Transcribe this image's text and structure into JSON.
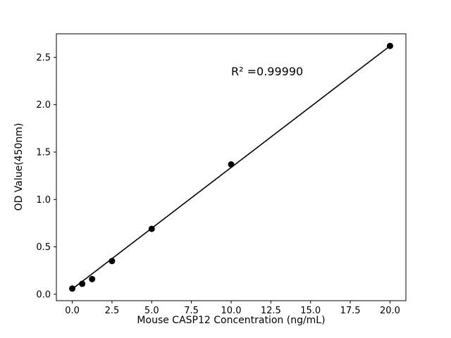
{
  "chart_data": {
    "type": "scatter",
    "title": "",
    "xlabel": "Mouse CASP12 Concentration (ng/mL)",
    "ylabel": "OD Value(450nm)",
    "annotation": "R² =0.99990",
    "annotation_pos": {
      "x": 10.0,
      "y": 2.33
    },
    "x": [
      0,
      0.625,
      1.25,
      2.5,
      5,
      10,
      20
    ],
    "y": [
      0.06,
      0.11,
      0.16,
      0.35,
      0.69,
      1.37,
      2.62
    ],
    "fit_line": {
      "x": [
        0,
        20
      ],
      "y": [
        0.055,
        2.62
      ]
    },
    "xlim": [
      -1.0,
      21.0
    ],
    "ylim": [
      -0.068,
      2.748
    ],
    "x_ticks": [
      0.0,
      2.5,
      5.0,
      7.5,
      10.0,
      12.5,
      15.0,
      17.5,
      20.0
    ],
    "x_tick_labels": [
      "0.0",
      "2.5",
      "5.0",
      "7.5",
      "10.0",
      "12.5",
      "15.0",
      "17.5",
      "20.0"
    ],
    "y_ticks": [
      0.0,
      0.5,
      1.0,
      1.5,
      2.0,
      2.5
    ],
    "y_tick_labels": [
      "0.0",
      "0.5",
      "1.0",
      "1.5",
      "2.0",
      "2.5"
    ],
    "grid": false,
    "legend": "none",
    "marker_color": "#000000",
    "line_color": "#000000",
    "axis_color": "#000000",
    "background": "#ffffff"
  }
}
